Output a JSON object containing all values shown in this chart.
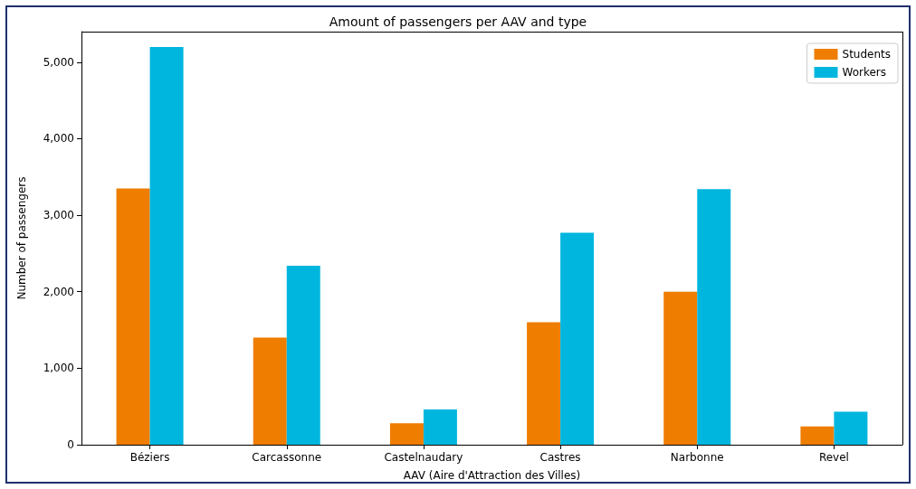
{
  "chart_data": {
    "type": "bar",
    "title": "Amount of passengers per AAV and type",
    "xlabel": "AAV (Aire d'Attraction des Villes)",
    "ylabel": "Number of passengers",
    "categories": [
      "Béziers",
      "Carcassonne",
      "Castelnaudary",
      "Castres",
      "Narbonne",
      "Revel"
    ],
    "series": [
      {
        "name": "Students",
        "color": "#ef7d00",
        "values": [
          3350,
          1400,
          280,
          1600,
          2000,
          240
        ]
      },
      {
        "name": "Workers",
        "color": "#00b6de",
        "values": [
          5200,
          2340,
          460,
          2770,
          3340,
          430
        ]
      }
    ],
    "ylim": [
      0,
      5400
    ],
    "yticks": [
      0,
      {
        "value": 1000,
        "label": "1,000"
      },
      {
        "value": 2000,
        "label": "2,000"
      },
      {
        "value": 3000,
        "label": "3,000"
      },
      {
        "value": 4000,
        "label": "4,000"
      },
      {
        "value": 5000,
        "label": "5,000"
      }
    ],
    "grid": false,
    "legend": "top right"
  }
}
